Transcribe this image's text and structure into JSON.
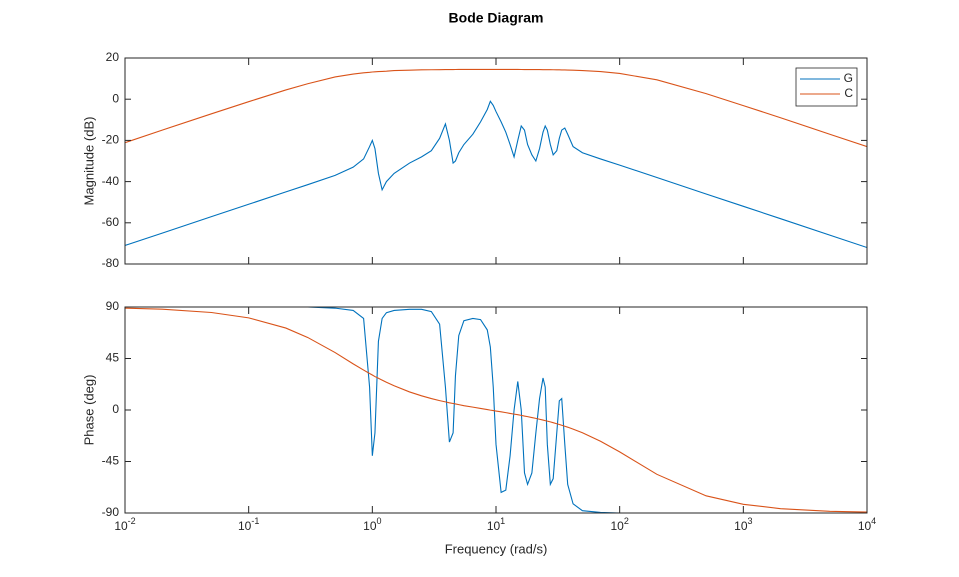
{
  "chart_data": [
    {
      "type": "line",
      "title": "Bode Diagram",
      "ylabel": "Magnitude (dB)",
      "xscale": "log",
      "legend": "upper right",
      "x": [
        0.01,
        0.02,
        0.05,
        0.1,
        0.2,
        0.3,
        0.5,
        0.7,
        0.85,
        0.95,
        1.0,
        1.05,
        1.12,
        1.2,
        1.3,
        1.5,
        2,
        2.5,
        3,
        3.5,
        3.9,
        4.2,
        4.5,
        4.7,
        5,
        5.5,
        6.5,
        7.5,
        8.5,
        9,
        9.5,
        10,
        11,
        12,
        13,
        14,
        15,
        16,
        17,
        18,
        19.5,
        21,
        22.5,
        24,
        25,
        26,
        27.5,
        29,
        31,
        32.5,
        34,
        36,
        38,
        42,
        50,
        70,
        100,
        200,
        500,
        1000,
        2000,
        5000,
        10000
      ],
      "series": [
        {
          "name": "G",
          "color": "#0072bd",
          "values": [
            -71,
            -65,
            -57,
            -51,
            -45,
            -41.5,
            -37,
            -33,
            -29,
            -23,
            -20,
            -24,
            -36,
            -44,
            -40,
            -36,
            -31,
            -28,
            -25,
            -19,
            -12,
            -20,
            -31,
            -30,
            -26,
            -22,
            -17,
            -11,
            -5,
            -1,
            -3,
            -6,
            -11,
            -16,
            -22,
            -28,
            -20,
            -13,
            -15,
            -22,
            -27,
            -30,
            -24,
            -16,
            -13,
            -15,
            -22,
            -27,
            -25,
            -19,
            -15,
            -14,
            -17,
            -23,
            -26,
            -29,
            -32,
            -38,
            -46,
            -52,
            -58,
            -66,
            -72
          ]
        },
        {
          "name": "C",
          "color": "#d95319",
          "values": [
            -21.1,
            -15.0,
            -7.1,
            -1.2,
            4.5,
            7.5,
            10.8,
            12.2,
            12.8,
            13.05,
            13.2,
            13.3,
            13.4,
            13.5,
            13.6,
            13.9,
            14.1,
            14.25,
            14.3,
            14.35,
            14.4,
            14.4,
            14.4,
            14.42,
            14.45,
            14.45,
            14.45,
            14.46,
            14.46,
            14.46,
            14.46,
            14.46,
            14.45,
            14.45,
            14.44,
            14.44,
            14.43,
            14.42,
            14.41,
            14.4,
            14.39,
            14.38,
            14.37,
            14.35,
            14.34,
            14.33,
            14.31,
            14.29,
            14.27,
            14.25,
            14.22,
            14.19,
            14.16,
            14.1,
            13.9,
            13.4,
            12.5,
            9.4,
            2.7,
            -3.1,
            -9.0,
            -17.0,
            -23.0
          ]
        }
      ],
      "xlim": [
        0.01,
        10000
      ],
      "xticks": [
        0.01,
        0.1,
        1,
        10,
        100,
        1000,
        10000
      ],
      "ylim": [
        -80,
        20
      ],
      "yticks": [
        -80,
        -60,
        -40,
        -20,
        0,
        20
      ]
    },
    {
      "type": "line",
      "xlabel": "Frequency (rad/s)",
      "ylabel": "Phase (deg)",
      "xscale": "log",
      "x": [
        0.01,
        0.02,
        0.05,
        0.1,
        0.2,
        0.3,
        0.5,
        0.7,
        0.85,
        0.95,
        1.0,
        1.05,
        1.12,
        1.2,
        1.3,
        1.5,
        2,
        2.5,
        3,
        3.5,
        3.9,
        4.2,
        4.5,
        4.7,
        5,
        5.5,
        6.5,
        7.5,
        8.5,
        9,
        9.5,
        10,
        11,
        12,
        13,
        14,
        15,
        16,
        17,
        18,
        19.5,
        21,
        22.5,
        24,
        25,
        26,
        27.5,
        29,
        31,
        32.5,
        34,
        36,
        38,
        42,
        50,
        70,
        100,
        200,
        500,
        1000,
        2000,
        5000,
        10000
      ],
      "series": [
        {
          "color": "#0072bd",
          "values": [
            90,
            90,
            90,
            90,
            90,
            90,
            89,
            87,
            80,
            20,
            -40,
            -20,
            60,
            80,
            85,
            87,
            88,
            88,
            86,
            75,
            20,
            -28,
            -20,
            30,
            65,
            78,
            80,
            79,
            70,
            55,
            20,
            -30,
            -72,
            -70,
            -40,
            0,
            25,
            0,
            -55,
            -65,
            -55,
            -20,
            10,
            28,
            20,
            -30,
            -65,
            -60,
            -20,
            8,
            10,
            -30,
            -65,
            -82,
            -88,
            -89.5,
            -90,
            -90,
            -90,
            -90,
            -90,
            -90,
            -90
          ]
        },
        {
          "color": "#d95319",
          "values": [
            89.0,
            88.1,
            85.2,
            80.5,
            71.6,
            63.4,
            50.2,
            40.3,
            34.9,
            31.9,
            30.6,
            29.2,
            27.7,
            26.1,
            24.2,
            21.2,
            15.8,
            12.4,
            10.0,
            8.2,
            7.1,
            6.3,
            5.7,
            5.3,
            4.7,
            3.8,
            2.5,
            1.4,
            0.4,
            -0.1,
            -0.5,
            -0.9,
            -1.6,
            -2.3,
            -3.0,
            -3.6,
            -4.1,
            -4.7,
            -5.3,
            -5.8,
            -6.6,
            -7.3,
            -8.1,
            -8.8,
            -9.3,
            -9.7,
            -10.4,
            -11.1,
            -12.0,
            -12.7,
            -13.3,
            -14.2,
            -15.0,
            -16.7,
            -19.9,
            -27.3,
            -36.6,
            -56.2,
            -75.0,
            -82.4,
            -86.2,
            -88.5,
            -89.2
          ]
        }
      ],
      "xlim": [
        0.01,
        10000
      ],
      "xticks": [
        {
          "value": 0.01,
          "label": "10",
          "exponent": "-2"
        },
        {
          "value": 0.1,
          "label": "10",
          "exponent": "-1"
        },
        {
          "value": 1,
          "label": "10",
          "exponent": "0"
        },
        {
          "value": 10,
          "label": "10",
          "exponent": "1"
        },
        {
          "value": 100,
          "label": "10",
          "exponent": "2"
        },
        {
          "value": 1000,
          "label": "10",
          "exponent": "3"
        },
        {
          "value": 10000,
          "label": "10",
          "exponent": "4"
        }
      ],
      "ylim": [
        -90,
        90
      ],
      "yticks": [
        -90,
        -45,
        0,
        45,
        90
      ]
    }
  ]
}
